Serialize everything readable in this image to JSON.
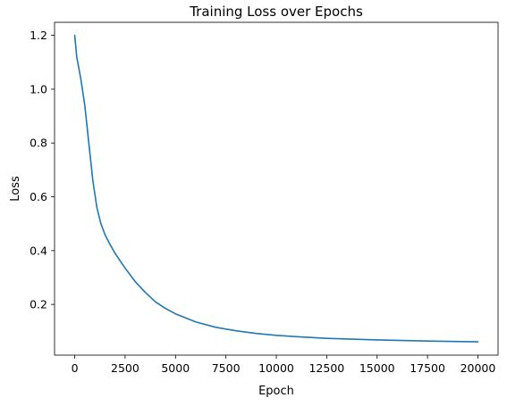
{
  "chart_data": {
    "type": "line",
    "title": "Training Loss over Epochs",
    "xlabel": "Epoch",
    "ylabel": "Loss",
    "xlim": [
      -1000,
      21000
    ],
    "ylim": [
      0.0115,
      1.2485
    ],
    "xticks": [
      0,
      2500,
      5000,
      7500,
      10000,
      12500,
      15000,
      17500,
      20000
    ],
    "xtick_labels": [
      "0",
      "2500",
      "5000",
      "7500",
      "10000",
      "12500",
      "15000",
      "17500",
      "20000"
    ],
    "yticks": [
      0.2,
      0.4,
      0.6,
      0.8,
      1.0,
      1.2
    ],
    "ytick_labels": [
      "0.2",
      "0.4",
      "0.6",
      "0.8",
      "1.0",
      "1.2"
    ],
    "grid": false,
    "series": [
      {
        "color": "#1f77b4",
        "x": [
          0,
          100,
          300,
          500,
          700,
          900,
          1100,
          1300,
          1500,
          1700,
          2000,
          2500,
          3000,
          3500,
          4000,
          4500,
          5000,
          6000,
          7000,
          8000,
          9000,
          10000,
          11000,
          12500,
          15000,
          17500,
          20000
        ],
        "y": [
          1.2,
          1.12,
          1.04,
          0.94,
          0.8,
          0.66,
          0.56,
          0.5,
          0.46,
          0.43,
          0.39,
          0.335,
          0.285,
          0.245,
          0.21,
          0.185,
          0.165,
          0.135,
          0.115,
          0.102,
          0.092,
          0.085,
          0.08,
          0.074,
          0.068,
          0.064,
          0.061
        ]
      }
    ]
  }
}
